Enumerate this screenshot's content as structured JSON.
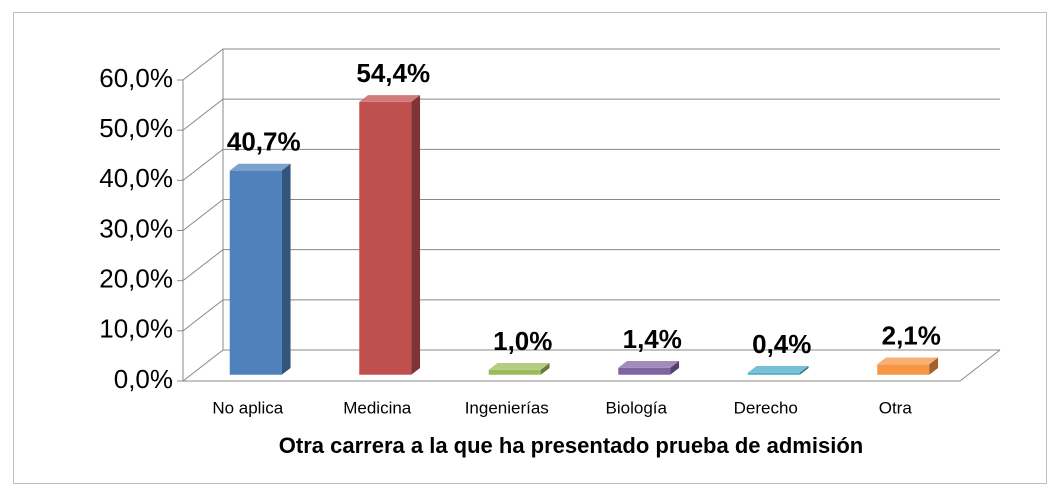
{
  "chart_data": {
    "type": "bar3d",
    "x_label": "Otra carrera a la que ha presentado prueba de admisión",
    "categories": [
      "No aplica",
      "Medicina",
      "Ingenierías",
      "Biología",
      "Derecho",
      "Otra"
    ],
    "values": [
      40.7,
      54.4,
      1.0,
      1.4,
      0.4,
      2.1
    ],
    "value_labels": [
      "40,7%",
      "54,4%",
      "1,0%",
      "1,4%",
      "0,4%",
      "2,1%"
    ],
    "colors": [
      "#4f81bd",
      "#c0504d",
      "#9bbb59",
      "#8064a2",
      "#4bacc6",
      "#f79646"
    ],
    "ylim": [
      0,
      60
    ],
    "yticks": [
      {
        "value": 0,
        "label": "0,0%"
      },
      {
        "value": 10,
        "label": "10,0%"
      },
      {
        "value": 20,
        "label": "20,0%"
      },
      {
        "value": 30,
        "label": "30,0%"
      },
      {
        "value": 40,
        "label": "40,0%"
      },
      {
        "value": 50,
        "label": "50,0%"
      },
      {
        "value": 60,
        "label": "60,0%"
      }
    ],
    "grid": true
  }
}
